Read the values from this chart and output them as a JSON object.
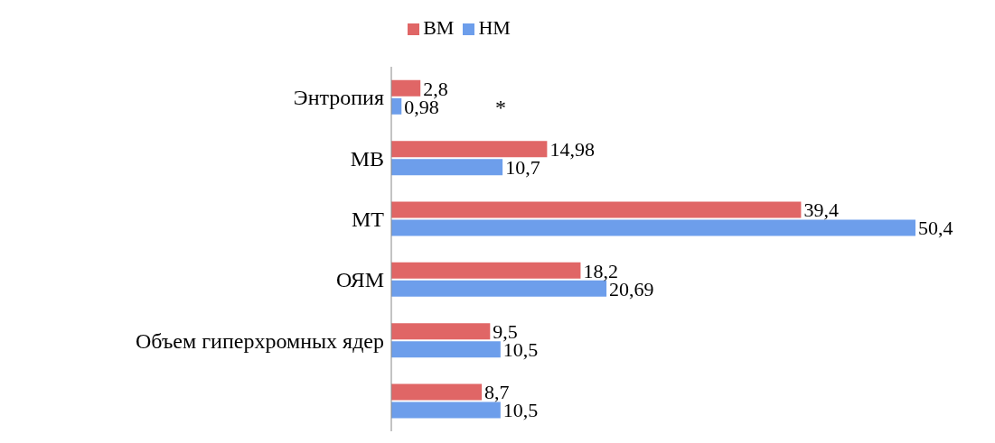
{
  "chart_data": {
    "type": "bar",
    "orientation": "horizontal",
    "legend": "top",
    "categories": [
      "Энтропия",
      "МВ",
      "МТ",
      "ОЯМ",
      "Объем гиперхромных ядер",
      null
    ],
    "series": [
      {
        "name": "ВМ",
        "color": "#e06666",
        "values": [
          2.8,
          14.98,
          39.4,
          18.2,
          9.5,
          8.7
        ],
        "value_labels": [
          "2,8",
          "14,98",
          "39,4",
          "18,2",
          "9,5",
          "8,7"
        ]
      },
      {
        "name": "НМ",
        "color": "#6d9eeb",
        "values": [
          0.98,
          10.7,
          50.4,
          20.69,
          10.5,
          10.5
        ],
        "value_labels": [
          "0,98",
          "10,7",
          "50,4",
          "20,69",
          "10,5",
          "10,5"
        ]
      }
    ],
    "annotations": [
      "*"
    ]
  }
}
